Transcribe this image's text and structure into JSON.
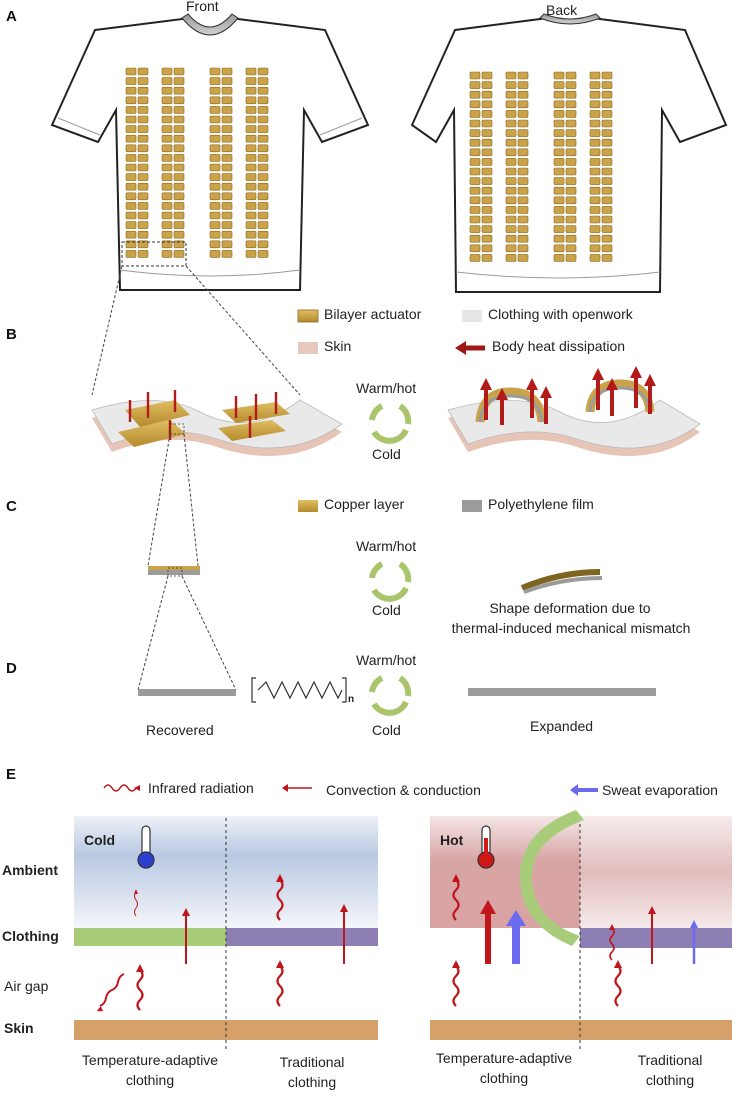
{
  "colors": {
    "copper": "#c9a24a",
    "copper_edge": "#8a6a1c",
    "polyethylene": "#9b9b9b",
    "skin": "#d6a06a",
    "skin_pink": "#e8c8bc",
    "cloth_gray": "#e6e6e6",
    "heat_red": "#b31b1b",
    "sweat_blue": "#5b5bdc",
    "cycle_green": "#a9c46a",
    "clothing_green": "#a9cc7b",
    "clothing_purple": "#8d7fb3",
    "cold_top": "#dbe4f2",
    "hot_top": "#d9a7a7"
  },
  "panel_a": {
    "letter": "A",
    "front_label": "Front",
    "back_label": "Back"
  },
  "panel_b": {
    "letter": "B",
    "legend": {
      "bilayer_actuator": "Bilayer actuator",
      "clothing_openwork": "Clothing with openwork",
      "skin": "Skin",
      "body_heat": "Body heat dissipation"
    },
    "cycle_top": "Warm/hot",
    "cycle_bottom": "Cold"
  },
  "panel_c": {
    "letter": "C",
    "legend": {
      "copper_layer": "Copper layer",
      "polyethylene_film": "Polyethylene film"
    },
    "cycle_top": "Warm/hot",
    "cycle_bottom": "Cold",
    "caption_line1": "Shape deformation due to",
    "caption_line2": "thermal-induced mechanical mismatch"
  },
  "panel_d": {
    "letter": "D",
    "recovered": "Recovered",
    "expanded": "Expanded",
    "subscript": "n",
    "cycle_top": "Warm/hot",
    "cycle_bottom": "Cold"
  },
  "panel_e": {
    "letter": "E",
    "legend": {
      "infrared": "Infrared radiation",
      "convection": "Convection & conduction",
      "sweat": "Sweat evaporation"
    },
    "row_labels": {
      "ambient": "Ambient",
      "clothing": "Clothing",
      "air_gap": "Air gap",
      "skin": "Skin"
    },
    "cold": {
      "title": "Cold",
      "left_caption_line1": "Temperature-adaptive",
      "left_caption_line2": "clothing",
      "right_caption_line1": "Traditional",
      "right_caption_line2": "clothing"
    },
    "hot": {
      "title": "Hot",
      "left_caption_line1": "Temperature-adaptive",
      "left_caption_line2": "clothing",
      "right_caption_line1": "Traditional",
      "right_caption_line2": "clothing"
    }
  }
}
